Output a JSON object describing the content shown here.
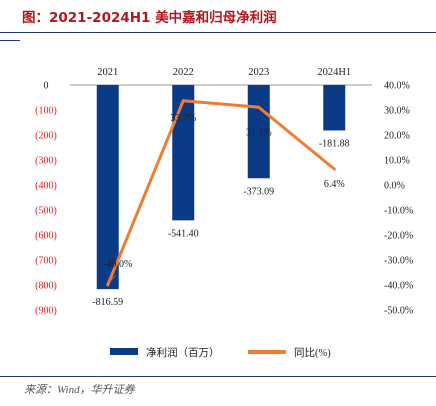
{
  "header": {
    "title": "图：2021-2024H1 美中嘉和归母净利润"
  },
  "footer": {
    "source": "来源：Wind，华升证券"
  },
  "chart_data": {
    "type": "bar",
    "categories": [
      "2021",
      "2022",
      "2023",
      "2024H1"
    ],
    "series": [
      {
        "name": "净利润（百万）",
        "kind": "bar",
        "axis": "left",
        "color": "#0b3a86",
        "values": [
          -816.59,
          -541.4,
          -373.09,
          -181.88
        ],
        "labels": [
          "-816.59",
          "-541.40",
          "-373.09",
          "-181.88"
        ]
      },
      {
        "name": "同比(%)",
        "kind": "line",
        "axis": "right",
        "color": "#ee7d31",
        "values": [
          -40.0,
          33.7,
          31.1,
          6.4
        ],
        "labels": [
          "-40.0%",
          "33.7%",
          "31.1%",
          "6.4%"
        ]
      }
    ],
    "left_axis": {
      "ylim": [
        -900,
        0
      ],
      "ticks": [
        "0",
        "(100)",
        "(200)",
        "(300)",
        "(400)",
        "(500)",
        "(600)",
        "(700)",
        "(800)",
        "(900)"
      ],
      "color": "#e02020"
    },
    "right_axis": {
      "ylim": [
        -50,
        40
      ],
      "ticks": [
        "40.0%",
        "30.0%",
        "20.0%",
        "10.0%",
        "0.0%",
        "-10.0%",
        "-20.0%",
        "-30.0%",
        "-40.0%",
        "-50.0%"
      ]
    },
    "legend": "bottom",
    "grid": false
  }
}
